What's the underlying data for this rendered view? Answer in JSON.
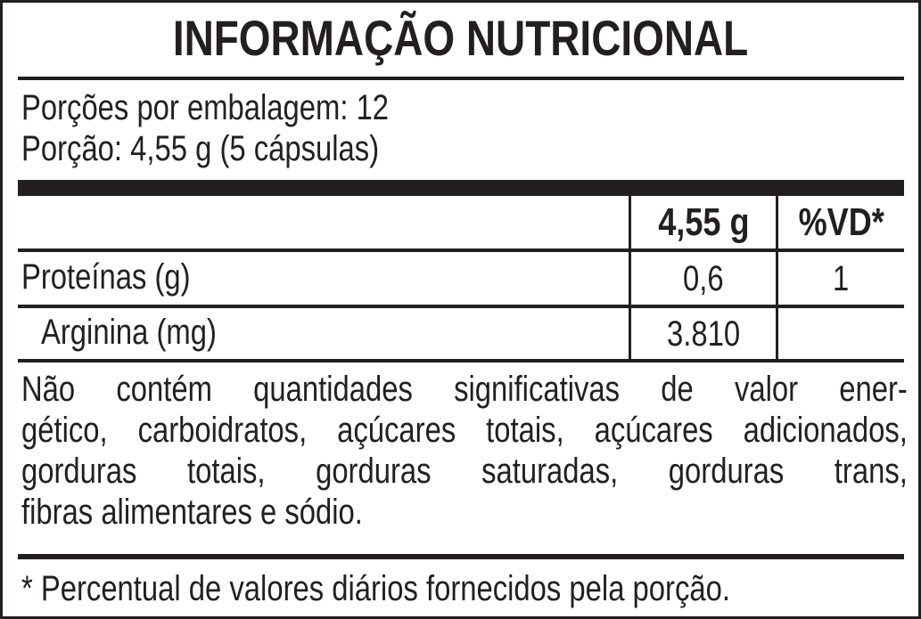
{
  "title": "INFORMAÇÃO NUTRICIONAL",
  "servings_per_package": "Porções por embalagem: 12",
  "serving_size": "Porção: 4,55 g (5 cápsulas)",
  "table": {
    "headers": [
      "",
      "4,55 g",
      "%VD*"
    ],
    "rows": [
      {
        "name": "Proteínas (g)",
        "amount": "0,6",
        "dv": "1"
      },
      {
        "name": "Arginina (mg)",
        "amount": "3.810",
        "dv": ""
      }
    ]
  },
  "note_lines": [
    "Não contém quantidades significativas de valor ener-",
    "gético, carboidratos, açúcares totais, açúcares adicionados,",
    "gorduras totais, gorduras saturadas, gorduras trans,",
    "fibras alimentares e sódio."
  ],
  "footnote": "* Percentual de valores diários fornecidos pela porção."
}
